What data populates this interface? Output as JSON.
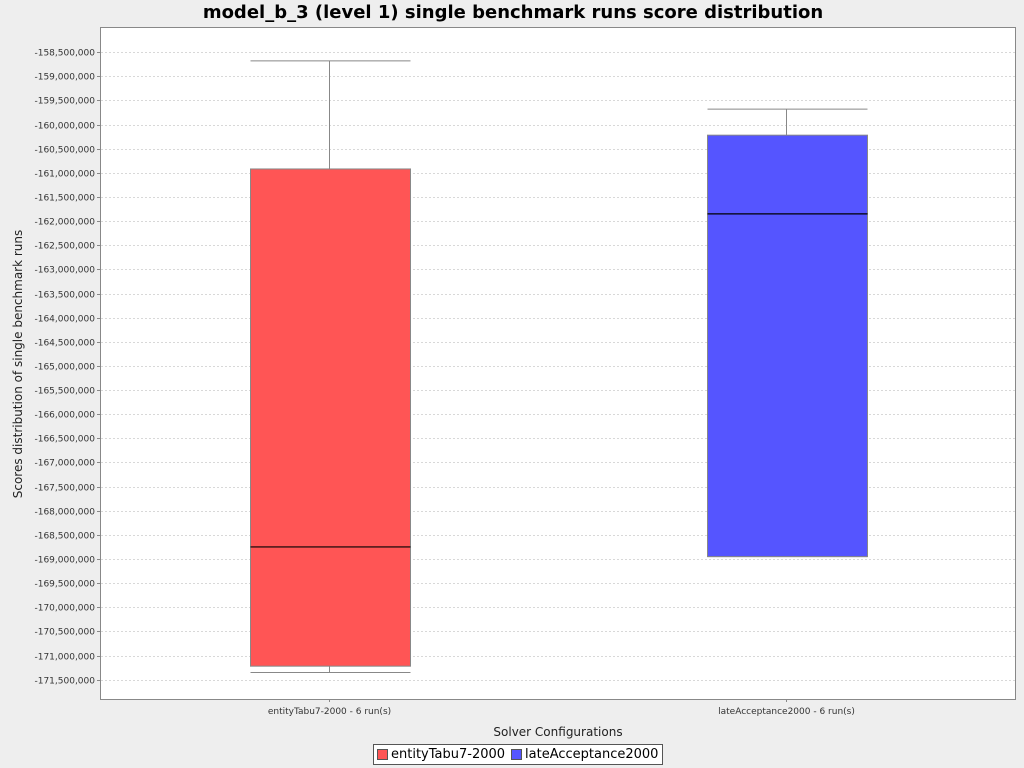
{
  "chart_data": {
    "type": "box",
    "title": "model_b_3 (level 1) single benchmark runs score distribution",
    "xlabel": "Solver Configurations",
    "ylabel": "Scores distribution of single benchmark runs",
    "ylim": [
      -171900000,
      -158000000
    ],
    "ytick_step": 500000,
    "yticks_start": -171500000,
    "yticks_end": -158500000,
    "grid": true,
    "legend_position": "bottom",
    "categories": [
      "entityTabu7-2000 - 6 run(s)",
      "lateAcceptance2000 - 6 run(s)"
    ],
    "series": [
      {
        "name": "entityTabu7-2000",
        "color": "#ff5555",
        "min": -171350000,
        "q1": -171220000,
        "median": -168750000,
        "q3": -160920000,
        "max": -158680000
      },
      {
        "name": "lateAcceptance2000",
        "color": "#5555ff",
        "min": -168950000,
        "q1": -168950000,
        "median": -161850000,
        "q3": -160220000,
        "max": -159680000
      }
    ]
  }
}
